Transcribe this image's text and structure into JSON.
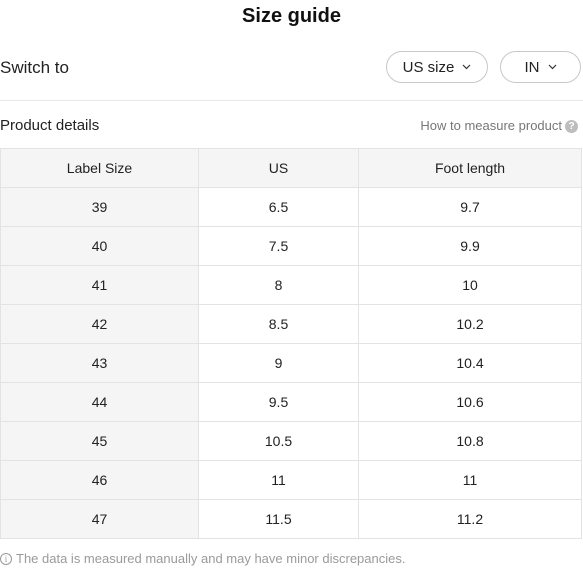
{
  "header": {
    "title": "Size guide"
  },
  "switch": {
    "label": "Switch to",
    "size_system": "US size",
    "unit": "IN",
    "chevron_icon": "chevron-down-icon"
  },
  "details": {
    "title": "Product details",
    "measure_link": "How to measure product",
    "help_icon": "help-icon",
    "help_glyph": "?"
  },
  "table": {
    "headers": [
      "Label Size",
      "US",
      "Foot length"
    ],
    "rows": [
      [
        "39",
        "6.5",
        "9.7"
      ],
      [
        "40",
        "7.5",
        "9.9"
      ],
      [
        "41",
        "8",
        "10"
      ],
      [
        "42",
        "8.5",
        "10.2"
      ],
      [
        "43",
        "9",
        "10.4"
      ],
      [
        "44",
        "9.5",
        "10.6"
      ],
      [
        "45",
        "10.5",
        "10.8"
      ],
      [
        "46",
        "11",
        "11"
      ],
      [
        "47",
        "11.5",
        "11.2"
      ]
    ]
  },
  "footer": {
    "note": "The data is measured manually and may have minor discrepancies.",
    "info_icon": "info-icon",
    "info_glyph": "i"
  },
  "colors": {
    "header_bg": "#f5f5f5",
    "border": "#e3e3e3",
    "muted_text": "#9a9a9a"
  }
}
